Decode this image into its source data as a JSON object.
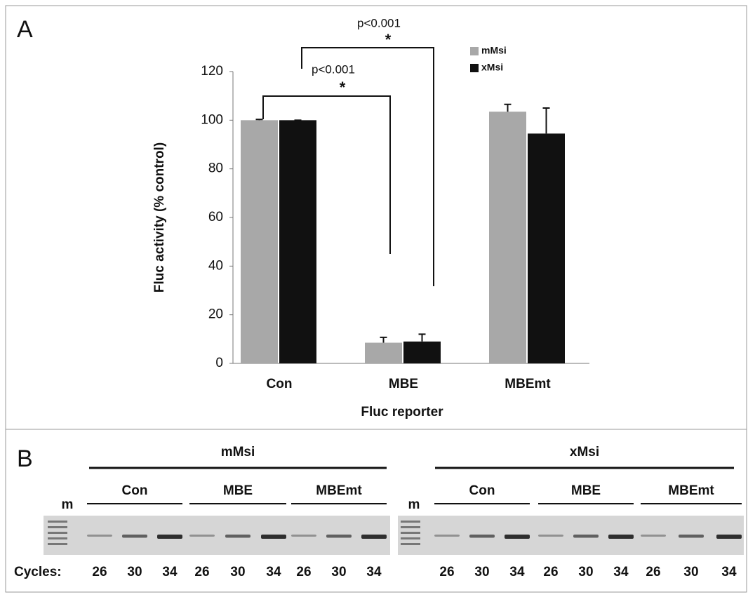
{
  "chart_data": {
    "type": "bar",
    "panel_label": "A",
    "categories": [
      "Con",
      "MBE",
      "MBEmt"
    ],
    "series": [
      {
        "name": "mMsi",
        "color": "#a8a8a8",
        "values": [
          100,
          8.5,
          103.5
        ],
        "errors": [
          0.3,
          2.2,
          3
        ]
      },
      {
        "name": "xMsi",
        "color": "#111111",
        "values": [
          100,
          9,
          94.5
        ],
        "errors": [
          0,
          3,
          10.5
        ]
      }
    ],
    "ylim": [
      0,
      120
    ],
    "yticks": [
      0,
      20,
      40,
      60,
      80,
      100,
      120
    ],
    "y_label": "Fluc activity (% control)",
    "x_label": "Fluc reporter",
    "annotations": [
      {
        "label": "p<0.001",
        "star": "*"
      },
      {
        "label": "p<0.001",
        "star": "*"
      }
    ]
  },
  "gel": {
    "panel_label": "B",
    "marker_label": "m",
    "cycles_label": "Cycles:",
    "groups": [
      {
        "name": "mMsi",
        "constructs": [
          {
            "name": "Con",
            "cycles": [
              26,
              30,
              34
            ]
          },
          {
            "name": "MBE",
            "cycles": [
              26,
              30,
              34
            ]
          },
          {
            "name": "MBEmt",
            "cycles": [
              26,
              30,
              34
            ]
          }
        ]
      },
      {
        "name": "xMsi",
        "constructs": [
          {
            "name": "Con",
            "cycles": [
              26,
              30,
              34
            ]
          },
          {
            "name": "MBE",
            "cycles": [
              26,
              30,
              34
            ]
          },
          {
            "name": "MBEmt",
            "cycles": [
              26,
              30,
              34
            ]
          }
        ]
      }
    ]
  }
}
